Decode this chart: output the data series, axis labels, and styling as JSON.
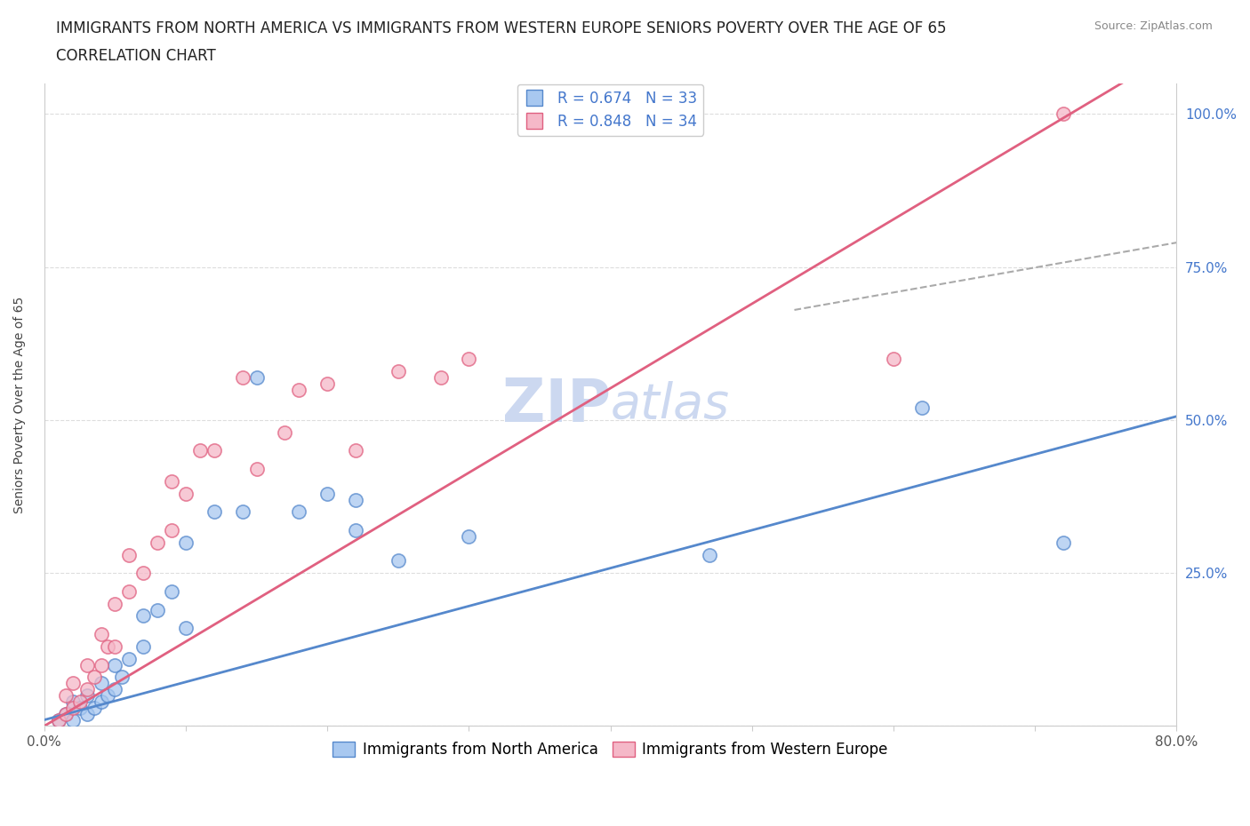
{
  "title_line1": "IMMIGRANTS FROM NORTH AMERICA VS IMMIGRANTS FROM WESTERN EUROPE SENIORS POVERTY OVER THE AGE OF 65",
  "title_line2": "CORRELATION CHART",
  "source_text": "Source: ZipAtlas.com",
  "xlabel": "",
  "ylabel": "Seniors Poverty Over the Age of 65",
  "xlim": [
    0,
    0.8
  ],
  "ylim": [
    0,
    1.05
  ],
  "xticks": [
    0.0,
    0.1,
    0.2,
    0.3,
    0.4,
    0.5,
    0.6,
    0.7,
    0.8
  ],
  "xticklabels": [
    "0.0%",
    "",
    "",
    "",
    "",
    "",
    "",
    "",
    "80.0%"
  ],
  "ytick_positions": [
    0.0,
    0.25,
    0.5,
    0.75,
    1.0
  ],
  "yticklabels": [
    "",
    "25.0%",
    "50.0%",
    "75.0%",
    "100.0%"
  ],
  "R_blue": 0.674,
  "N_blue": 33,
  "R_pink": 0.848,
  "N_pink": 34,
  "blue_color": "#a8c8f0",
  "pink_color": "#f5b8c8",
  "blue_line_color": "#5588cc",
  "pink_line_color": "#e06080",
  "dashed_line_color": "#aaaaaa",
  "watermark_text": "ZIPatlas",
  "watermark_color": "#ccd8f0",
  "grid_color": "#dddddd",
  "axis_color": "#cccccc",
  "blue_scatter_x": [
    0.01,
    0.015,
    0.02,
    0.02,
    0.025,
    0.03,
    0.03,
    0.035,
    0.04,
    0.04,
    0.045,
    0.05,
    0.05,
    0.055,
    0.06,
    0.07,
    0.07,
    0.08,
    0.09,
    0.1,
    0.1,
    0.12,
    0.14,
    0.15,
    0.18,
    0.2,
    0.22,
    0.22,
    0.25,
    0.3,
    0.47,
    0.62,
    0.72
  ],
  "blue_scatter_y": [
    0.01,
    0.02,
    0.01,
    0.04,
    0.03,
    0.02,
    0.05,
    0.03,
    0.04,
    0.07,
    0.05,
    0.06,
    0.1,
    0.08,
    0.11,
    0.13,
    0.18,
    0.19,
    0.22,
    0.16,
    0.3,
    0.35,
    0.35,
    0.57,
    0.35,
    0.38,
    0.32,
    0.37,
    0.27,
    0.31,
    0.28,
    0.52,
    0.3
  ],
  "pink_scatter_x": [
    0.01,
    0.015,
    0.015,
    0.02,
    0.02,
    0.025,
    0.03,
    0.03,
    0.035,
    0.04,
    0.04,
    0.045,
    0.05,
    0.05,
    0.06,
    0.06,
    0.07,
    0.08,
    0.09,
    0.09,
    0.1,
    0.11,
    0.12,
    0.14,
    0.15,
    0.17,
    0.18,
    0.2,
    0.22,
    0.25,
    0.28,
    0.3,
    0.6,
    0.72
  ],
  "pink_scatter_y": [
    0.01,
    0.02,
    0.05,
    0.03,
    0.07,
    0.04,
    0.06,
    0.1,
    0.08,
    0.1,
    0.15,
    0.13,
    0.13,
    0.2,
    0.22,
    0.28,
    0.25,
    0.3,
    0.32,
    0.4,
    0.38,
    0.45,
    0.45,
    0.57,
    0.42,
    0.48,
    0.55,
    0.56,
    0.45,
    0.58,
    0.57,
    0.6,
    0.6,
    1.0
  ],
  "blue_marker_size": 120,
  "pink_marker_size": 120,
  "legend_label_blue": "Immigrants from North America",
  "legend_label_pink": "Immigrants from Western Europe",
  "title_fontsize": 12,
  "subtitle_fontsize": 12,
  "axis_label_fontsize": 10,
  "tick_fontsize": 11,
  "legend_fontsize": 12,
  "value_color": "#4477cc",
  "blue_tick_color": "#4477cc"
}
